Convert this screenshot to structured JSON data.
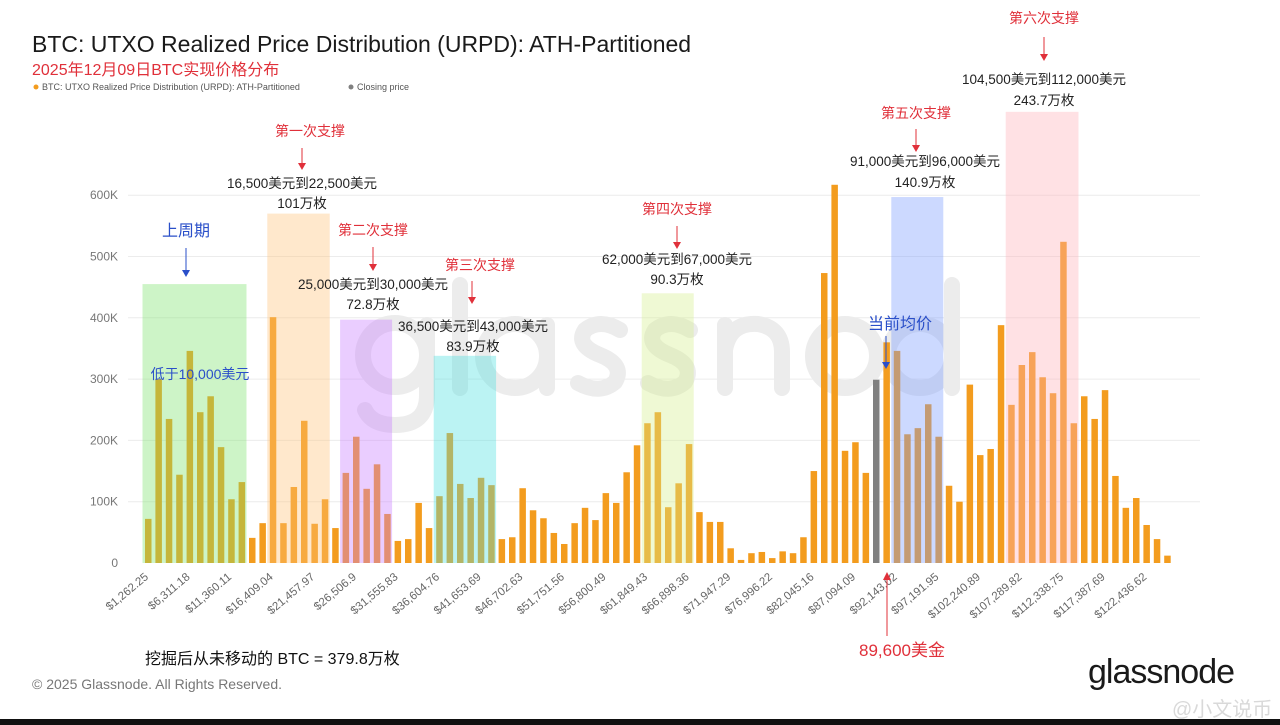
{
  "chart_data": {
    "type": "bar",
    "title": "BTC: UTXO Realized Price Distribution (URPD): ATH-Partitioned",
    "subtitle": "2025年12月09日BTC实现价格分布",
    "legend": [
      {
        "label": "BTC: UTXO Realized Price Distribution (URPD): ATH-Partitioned",
        "color": "#f39c1e"
      },
      {
        "label": "Closing price",
        "color": "#808080"
      }
    ],
    "legend_position": "top-left",
    "ylim": [
      0,
      600000
    ],
    "yticks": [
      "0",
      "100K",
      "200K",
      "300K",
      "400K",
      "500K",
      "600K"
    ],
    "xticks": [
      "$1,262.25",
      "$6,311.18",
      "$11,360.11",
      "$16,409.04",
      "$21,457.97",
      "$26,506.9",
      "$31,555.83",
      "$36,604.76",
      "$41,653.69",
      "$46,702.63",
      "$51,751.56",
      "$56,800.49",
      "$61,849.43",
      "$66,898.36",
      "$71,947.29",
      "$76,996.22",
      "$82,045.16",
      "$87,094.09",
      "$92,143.02",
      "$97,191.95",
      "$102,240.89",
      "$107,289.82",
      "$112,338.75",
      "$117,387.69",
      "$122,436.62"
    ],
    "bin_start": 1262.25,
    "bin_width": 1262.23,
    "closing_price_index": 70,
    "values_k": [
      72,
      300,
      235,
      144,
      346,
      246,
      272,
      189,
      104,
      132,
      41,
      65,
      401,
      65,
      124,
      232,
      64,
      104,
      57,
      147,
      206,
      121,
      161,
      80,
      36,
      39,
      98,
      57,
      109,
      212,
      129,
      106,
      139,
      127,
      39,
      42,
      122,
      86,
      73,
      49,
      31,
      65,
      90,
      70,
      114,
      98,
      148,
      192,
      228,
      246,
      91,
      130,
      194,
      83,
      67,
      67,
      24,
      5,
      16,
      18,
      8,
      19,
      16,
      42,
      150,
      473,
      617,
      183,
      197,
      147,
      299,
      360,
      346,
      210,
      220,
      259,
      206,
      126,
      100,
      291,
      176,
      186,
      388,
      258,
      323,
      344,
      303,
      277,
      524,
      228,
      272,
      235,
      282,
      142,
      90,
      106,
      62,
      39,
      12
    ],
    "grid": true
  },
  "annotations": {
    "s1_label": "第一次支撑",
    "s1_range": "16,500美元到22,500美元",
    "s1_amount": "101万枚",
    "cycle_label": "上周期",
    "cycle_range": "低于10,000美元",
    "s2_label": "第二次支撑",
    "s2_range": "25,000美元到30,000美元",
    "s2_amount": "72.8万枚",
    "s3_label": "第三次支撑",
    "s3_range": "36,500美元到43,000美元",
    "s3_amount": "83.9万枚",
    "s4_label": "第四次支撑",
    "s4_range": "62,000美元到67,000美元",
    "s4_amount": "90.3万枚",
    "s5_label": "第五次支撑",
    "s5_range": "91,000美元到96,000美元",
    "s5_amount": "140.9万枚",
    "s6_label": "第六次支撑",
    "s6_range": "104,500美元到112,000美元",
    "s6_amount": "243.7万枚",
    "avg_label": "当前均价",
    "unmoved": "挖掘后从未移动的 BTC = 379.8万枚",
    "price": "89,600美金"
  },
  "footer": {
    "copyright": "© 2025 Glassnode. All Rights Reserved.",
    "logo": "glassnode",
    "watermark": "glassnode",
    "credit": "@小文说币"
  },
  "colors": {
    "bar": "#f39c1e",
    "closing": "#808080",
    "red": "#e0303a",
    "blue": "#2a4fc9"
  }
}
